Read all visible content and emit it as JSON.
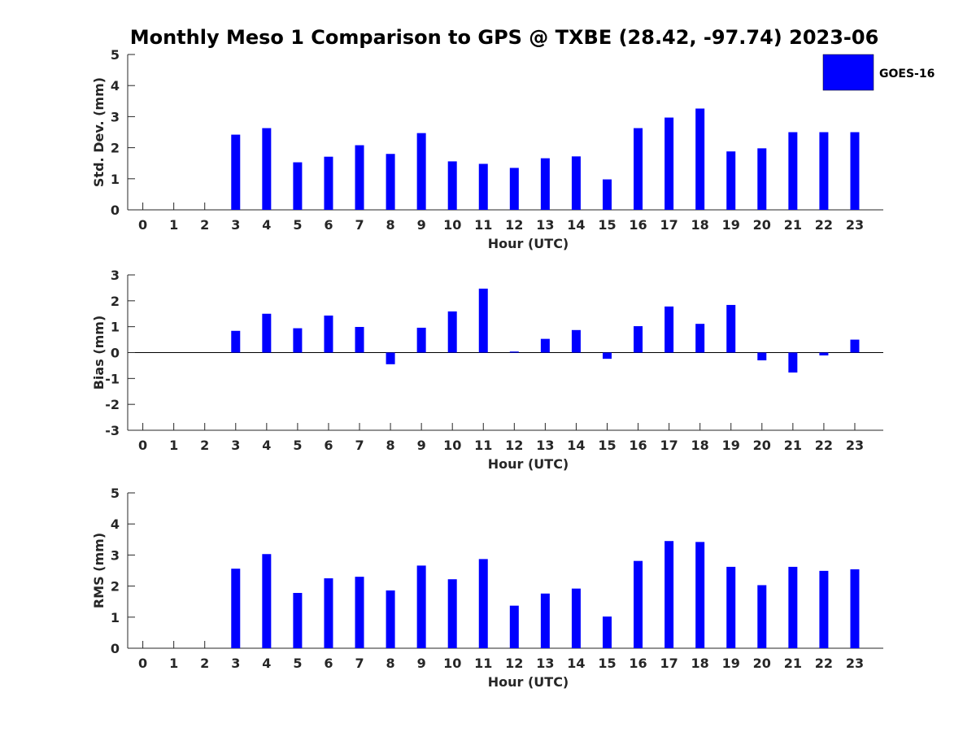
{
  "figure_title": "Monthly Meso 1 Comparison to GPS @ TXBE (28.42, -97.74) 2023-06",
  "legend": {
    "label": "GOES-16",
    "color": "#0000ff",
    "placement": "top-right"
  },
  "chart_data": [
    {
      "type": "bar",
      "id": "std",
      "title": "Monthly Meso 1 Comparison to GPS @ TXBE (28.42, -97.74) 2023-06",
      "xlabel": "Hour (UTC)",
      "ylabel": "Std. Dev. (mm)",
      "ylim": [
        0,
        5
      ],
      "yticks": [
        0,
        1,
        2,
        3,
        4,
        5
      ],
      "categories": [
        "0",
        "1",
        "2",
        "3",
        "4",
        "5",
        "6",
        "7",
        "8",
        "9",
        "10",
        "11",
        "12",
        "13",
        "14",
        "15",
        "16",
        "17",
        "18",
        "19",
        "20",
        "21",
        "22",
        "23"
      ],
      "series": [
        {
          "name": "GOES-16",
          "color": "#0000ff",
          "values": [
            null,
            null,
            null,
            2.42,
            2.63,
            1.53,
            1.71,
            2.08,
            1.8,
            2.47,
            1.56,
            1.48,
            1.35,
            1.66,
            1.72,
            0.98,
            2.63,
            2.97,
            3.26,
            1.88,
            1.98,
            2.5,
            2.5,
            2.5
          ]
        }
      ],
      "grid": false
    },
    {
      "type": "bar",
      "id": "bias",
      "xlabel": "Hour (UTC)",
      "ylabel": "Bias (mm)",
      "ylim": [
        -3,
        3
      ],
      "yticks": [
        -3,
        -2,
        -1,
        0,
        1,
        2,
        3
      ],
      "categories": [
        "0",
        "1",
        "2",
        "3",
        "4",
        "5",
        "6",
        "7",
        "8",
        "9",
        "10",
        "11",
        "12",
        "13",
        "14",
        "15",
        "16",
        "17",
        "18",
        "19",
        "20",
        "21",
        "22",
        "23"
      ],
      "series": [
        {
          "name": "GOES-16",
          "color": "#0000ff",
          "values": [
            null,
            null,
            null,
            0.84,
            1.5,
            0.94,
            1.43,
            0.99,
            -0.45,
            0.96,
            1.59,
            2.47,
            0.04,
            0.53,
            0.87,
            -0.24,
            1.02,
            1.78,
            1.11,
            1.84,
            -0.3,
            -0.77,
            -0.11,
            0.5
          ]
        }
      ],
      "grid": false
    },
    {
      "type": "bar",
      "id": "rms",
      "xlabel": "Hour (UTC)",
      "ylabel": "RMS (mm)",
      "ylim": [
        0,
        5
      ],
      "yticks": [
        0,
        1,
        2,
        3,
        4,
        5
      ],
      "categories": [
        "0",
        "1",
        "2",
        "3",
        "4",
        "5",
        "6",
        "7",
        "8",
        "9",
        "10",
        "11",
        "12",
        "13",
        "14",
        "15",
        "16",
        "17",
        "18",
        "19",
        "20",
        "21",
        "22",
        "23"
      ],
      "series": [
        {
          "name": "GOES-16",
          "color": "#0000ff",
          "values": [
            null,
            null,
            null,
            2.56,
            3.03,
            1.78,
            2.25,
            2.3,
            1.86,
            2.66,
            2.22,
            2.87,
            1.37,
            1.76,
            1.92,
            1.02,
            2.81,
            3.45,
            3.42,
            2.62,
            2.03,
            2.62,
            2.49,
            2.54
          ]
        }
      ],
      "grid": false
    }
  ]
}
